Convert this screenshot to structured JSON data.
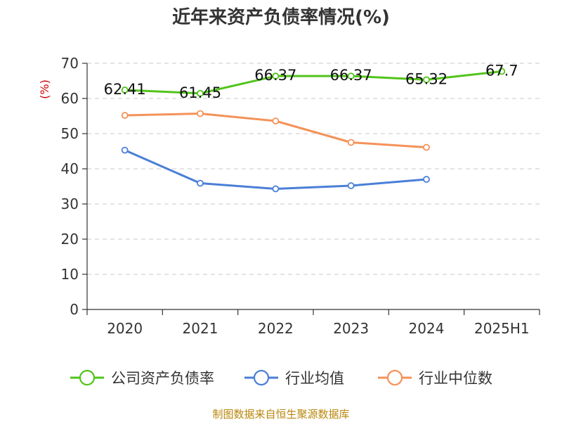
{
  "title": "近年来资产负债率情况(%)",
  "source": "制图数据来自恒生聚源数据库",
  "chart_data": {
    "type": "line",
    "title": "近年来资产负债率情况(%)",
    "ylabel": "(%)",
    "categories": [
      "2020",
      "2021",
      "2022",
      "2023",
      "2024",
      "2025H1"
    ],
    "ylim": [
      0,
      70
    ],
    "yticks": [
      0,
      10,
      20,
      30,
      40,
      50,
      60,
      70
    ],
    "grid": true,
    "legend_position": "bottom",
    "series": [
      {
        "name": "公司资产负债率",
        "color": "#52c41a",
        "values": [
          62.41,
          61.45,
          66.37,
          66.37,
          65.32,
          67.7
        ],
        "labels": [
          "62.41",
          "61.45",
          "66.37",
          "66.37",
          "65.32",
          "67.7"
        ],
        "show_labels": true
      },
      {
        "name": "行业均值",
        "color": "#4a7fd6",
        "values": [
          45.3,
          35.9,
          34.3,
          35.2,
          37.0,
          null
        ],
        "show_labels": false
      },
      {
        "name": "行业中位数",
        "color": "#f4925a",
        "values": [
          55.2,
          55.7,
          53.6,
          47.5,
          46.1,
          null
        ],
        "show_labels": false
      }
    ]
  }
}
